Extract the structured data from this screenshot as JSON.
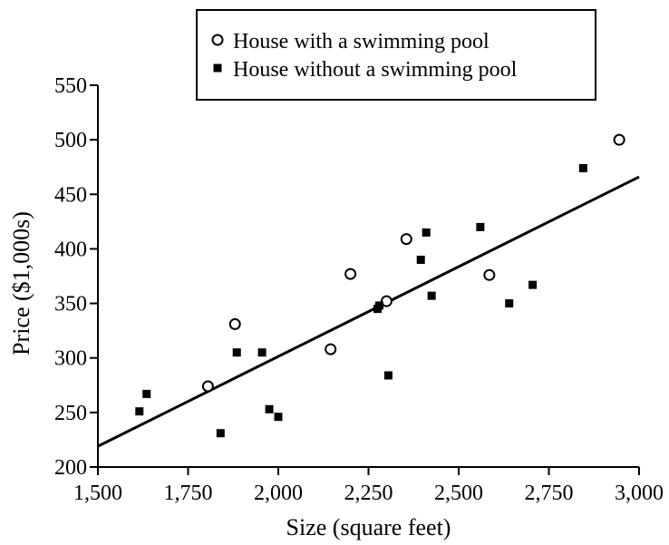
{
  "chart_data": {
    "type": "scatter",
    "xlabel": "Size (square feet)",
    "ylabel": "Price ($1,000s)",
    "xlim": [
      1500,
      3000
    ],
    "ylim": [
      200,
      550
    ],
    "x_ticks": [
      1500,
      1750,
      2000,
      2250,
      2500,
      2750,
      3000
    ],
    "x_tick_labels": [
      "1,500",
      "1,750",
      "2,000",
      "2,250",
      "2,500",
      "2,750",
      "3,000"
    ],
    "y_ticks": [
      200,
      250,
      300,
      350,
      400,
      450,
      500,
      550
    ],
    "y_tick_labels": [
      "200",
      "250",
      "300",
      "350",
      "400",
      "450",
      "500",
      "550"
    ],
    "grid": false,
    "legend_position": "top",
    "series": [
      {
        "name": "House with a swimming pool",
        "marker": "open-circle",
        "points": [
          {
            "x": 1805,
            "y": 274
          },
          {
            "x": 1880,
            "y": 331
          },
          {
            "x": 2145,
            "y": 308
          },
          {
            "x": 2200,
            "y": 377
          },
          {
            "x": 2300,
            "y": 352
          },
          {
            "x": 2355,
            "y": 409
          },
          {
            "x": 2585,
            "y": 376
          },
          {
            "x": 2945,
            "y": 500
          }
        ]
      },
      {
        "name": "House without a swimming pool",
        "marker": "filled-square",
        "points": [
          {
            "x": 1615,
            "y": 251
          },
          {
            "x": 1635,
            "y": 267
          },
          {
            "x": 1840,
            "y": 231
          },
          {
            "x": 1885,
            "y": 305
          },
          {
            "x": 1955,
            "y": 305
          },
          {
            "x": 1975,
            "y": 253
          },
          {
            "x": 2000,
            "y": 246
          },
          {
            "x": 2275,
            "y": 345
          },
          {
            "x": 2280,
            "y": 348
          },
          {
            "x": 2305,
            "y": 284
          },
          {
            "x": 2395,
            "y": 390
          },
          {
            "x": 2410,
            "y": 415
          },
          {
            "x": 2425,
            "y": 357
          },
          {
            "x": 2560,
            "y": 420
          },
          {
            "x": 2640,
            "y": 350
          },
          {
            "x": 2705,
            "y": 367
          },
          {
            "x": 2845,
            "y": 474
          }
        ]
      }
    ],
    "trend_line": {
      "x": [
        1500,
        3000
      ],
      "y": [
        219,
        466
      ]
    }
  }
}
